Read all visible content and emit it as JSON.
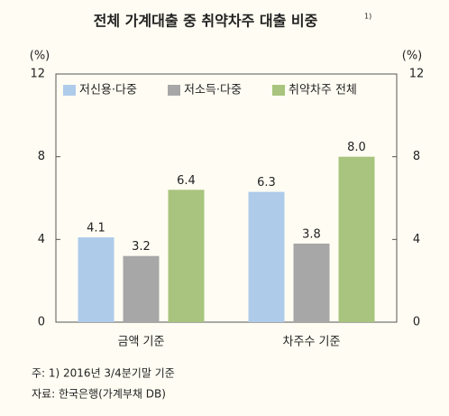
{
  "chart_data": {
    "type": "bar",
    "title": "전체 가계대출 중 취약차주 대출 비중",
    "title_note": "1)",
    "ylabel": "(%)",
    "y2label": "(%)",
    "categories": [
      "금액 기준",
      "차주수 기준"
    ],
    "series": [
      {
        "name": "저신용·다중",
        "color": "#afcbea",
        "values": [
          4.1,
          6.3
        ],
        "value_labels": [
          "4.1",
          "6.3"
        ]
      },
      {
        "name": "저소득·다중",
        "color": "#a7a7a7",
        "values": [
          3.2,
          3.8
        ],
        "value_labels": [
          "3.2",
          "3.8"
        ]
      },
      {
        "name": "취약차주 전체",
        "color": "#a8c47e",
        "values": [
          6.4,
          8
        ],
        "value_labels": [
          "6.4",
          "8.0"
        ]
      }
    ],
    "ylim": [
      0,
      12
    ],
    "yticks": [
      0,
      4,
      8,
      12
    ],
    "y2lim": [
      0,
      12
    ],
    "y2ticks": [
      0,
      4,
      8,
      12
    ],
    "legend": "top",
    "notes": [
      "주: 1) 2016년 3/4분기말 기준",
      "자료: 한국은행(가계부채 DB)"
    ]
  }
}
